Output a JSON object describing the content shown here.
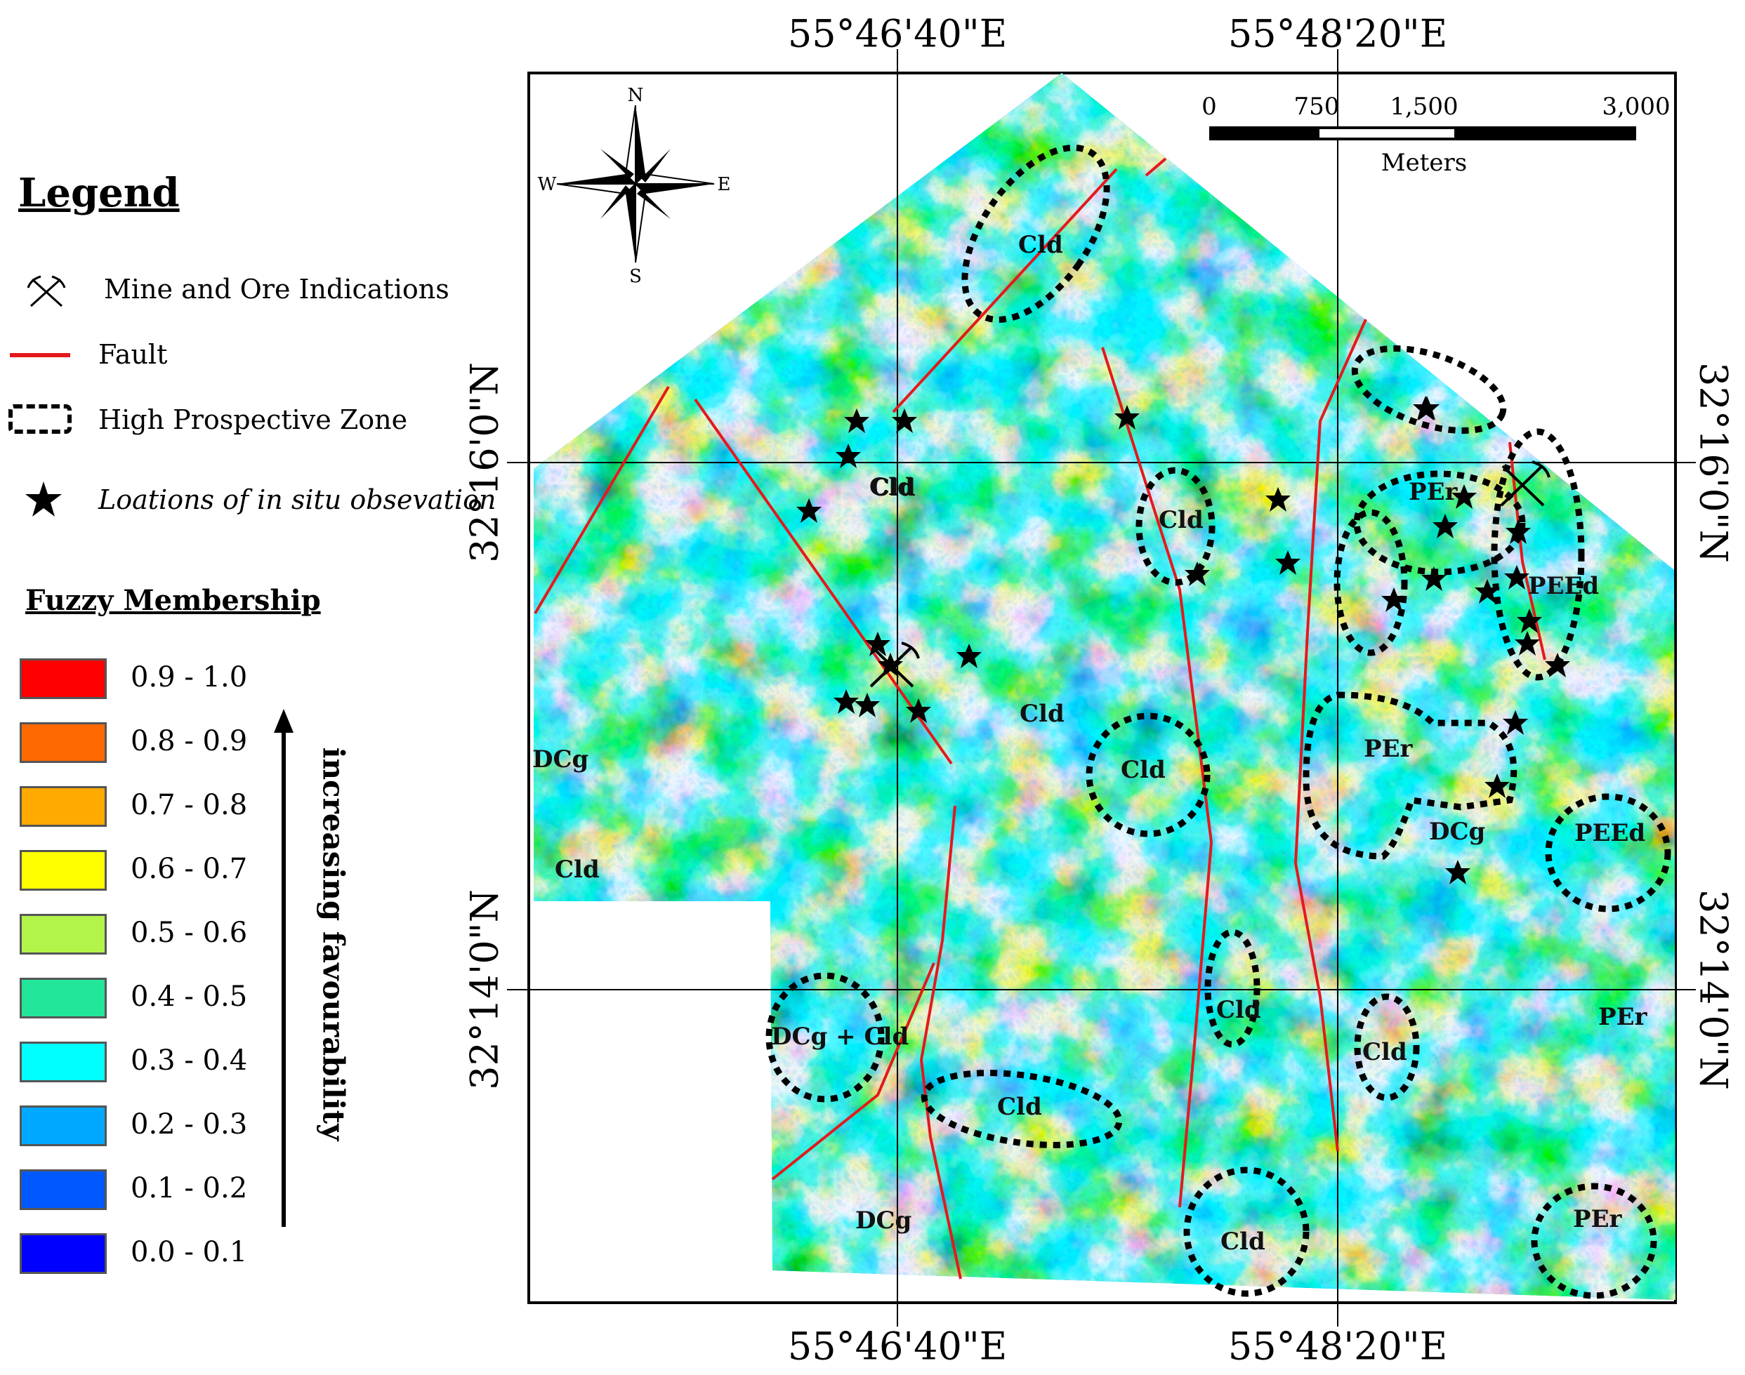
{
  "legend": {
    "title": "Legend",
    "items": [
      {
        "label": "Mine and Ore Indications",
        "icon": "pickaxe-cross-icon"
      },
      {
        "label": "Fault",
        "color": "#e31a1c"
      },
      {
        "label": "High Prospective Zone"
      },
      {
        "label": "Loations of in situ obsevation",
        "icon": "star-icon"
      }
    ]
  },
  "fuzzy": {
    "title": "Fuzzy Membership",
    "classes": [
      {
        "label": "0.9 - 1.0",
        "color": "#ff0000"
      },
      {
        "label": "0.8 - 0.9",
        "color": "#ff6a00"
      },
      {
        "label": "0.7 - 0.8",
        "color": "#ffaa00"
      },
      {
        "label": "0.6 - 0.7",
        "color": "#ffff00"
      },
      {
        "label": "0.5 - 0.6",
        "color": "#b2f44a"
      },
      {
        "label": "0.4 - 0.5",
        "color": "#22e69a"
      },
      {
        "label": "0.3 - 0.4",
        "color": "#00ffff"
      },
      {
        "label": "0.2 - 0.3",
        "color": "#00a9ff"
      },
      {
        "label": "0.1 - 0.2",
        "color": "#0058ff"
      },
      {
        "label": "0.0 - 0.1",
        "color": "#0000ff"
      }
    ],
    "arrow_label": "increasing favourability"
  },
  "coords": {
    "lon_left": "55°46'40\"E",
    "lon_right": "55°48'20\"E",
    "lat_top": "32°16'0\"N",
    "lat_bottom": "32°14'0\"N"
  },
  "north_arrow": {
    "n": "N",
    "s": "S",
    "e": "E",
    "w": "W"
  },
  "scale_bar": {
    "ticks": [
      "0",
      "750",
      "1,500",
      "3,000"
    ],
    "unit": "Meters"
  },
  "zones": [
    {
      "label": "Cld"
    },
    {
      "label": "Cld"
    },
    {
      "label": "Cld"
    },
    {
      "label": "Cld"
    },
    {
      "label": "Cld"
    },
    {
      "label": "Cld"
    },
    {
      "label": "Cld"
    },
    {
      "label": "Cld"
    },
    {
      "label": "PEr"
    },
    {
      "label": "PEEd"
    },
    {
      "label": "PEr"
    },
    {
      "label": "PEEd"
    },
    {
      "label": "PEr"
    },
    {
      "label": "DCg + Cld"
    }
  ],
  "unit_labels": [
    {
      "label": "Cld"
    },
    {
      "label": "Cld"
    },
    {
      "label": "Cld"
    },
    {
      "label": "DCg"
    },
    {
      "label": "DCg"
    },
    {
      "label": "DCg"
    },
    {
      "label": "PEr"
    }
  ]
}
